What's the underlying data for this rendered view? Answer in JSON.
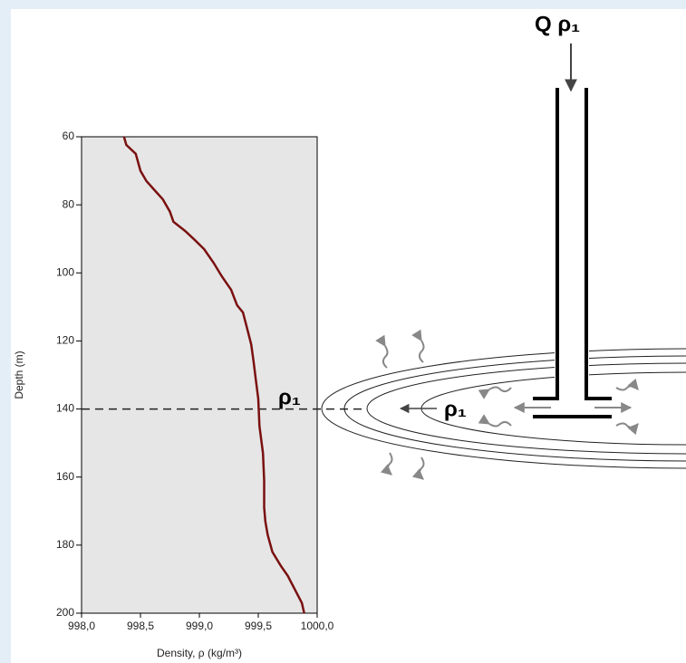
{
  "chart_data": {
    "type": "line",
    "x_label": "Density, ρ (kg/m³)",
    "y_label": "Depth (m)",
    "x": [
      998.36,
      998.38,
      998.46,
      998.5,
      998.55,
      998.62,
      998.69,
      998.75,
      998.78,
      998.88,
      998.96,
      999.04,
      999.12,
      999.19,
      999.27,
      999.32,
      999.37,
      999.4,
      999.44,
      999.46,
      999.48,
      999.5,
      999.51,
      999.54,
      999.55,
      999.55,
      999.56,
      999.58,
      999.62,
      999.69,
      999.75,
      999.81,
      999.87,
      999.89
    ],
    "values": [
      60,
      62.4,
      65,
      70,
      73,
      75.7,
      78.4,
      82,
      85,
      87.7,
      90.3,
      93,
      97,
      101,
      105,
      109.5,
      111.6,
      115.6,
      121,
      126,
      131.6,
      137,
      145,
      153,
      161,
      169,
      173,
      177,
      182,
      186,
      189,
      193,
      197,
      200
    ],
    "color": "#7a1010",
    "xlim": [
      998,
      1000
    ],
    "xticks": [
      {
        "value": 998,
        "label": "998,0"
      },
      {
        "value": 998.5,
        "label": "998,5"
      },
      {
        "value": 999,
        "label": "999,0"
      },
      {
        "value": 999.5,
        "label": "999,5"
      },
      {
        "value": 1000,
        "label": "1000,0"
      }
    ],
    "ylim": [
      60,
      200
    ],
    "y_inverted": true,
    "yticks": [
      60,
      80,
      100,
      120,
      140,
      160,
      180,
      200
    ],
    "grid": false,
    "reference_depth": 140,
    "annotations": {
      "profile_label": "ρ₁",
      "outflow_label": "ρ₁",
      "inflow_label": "Q ρ₁"
    }
  }
}
